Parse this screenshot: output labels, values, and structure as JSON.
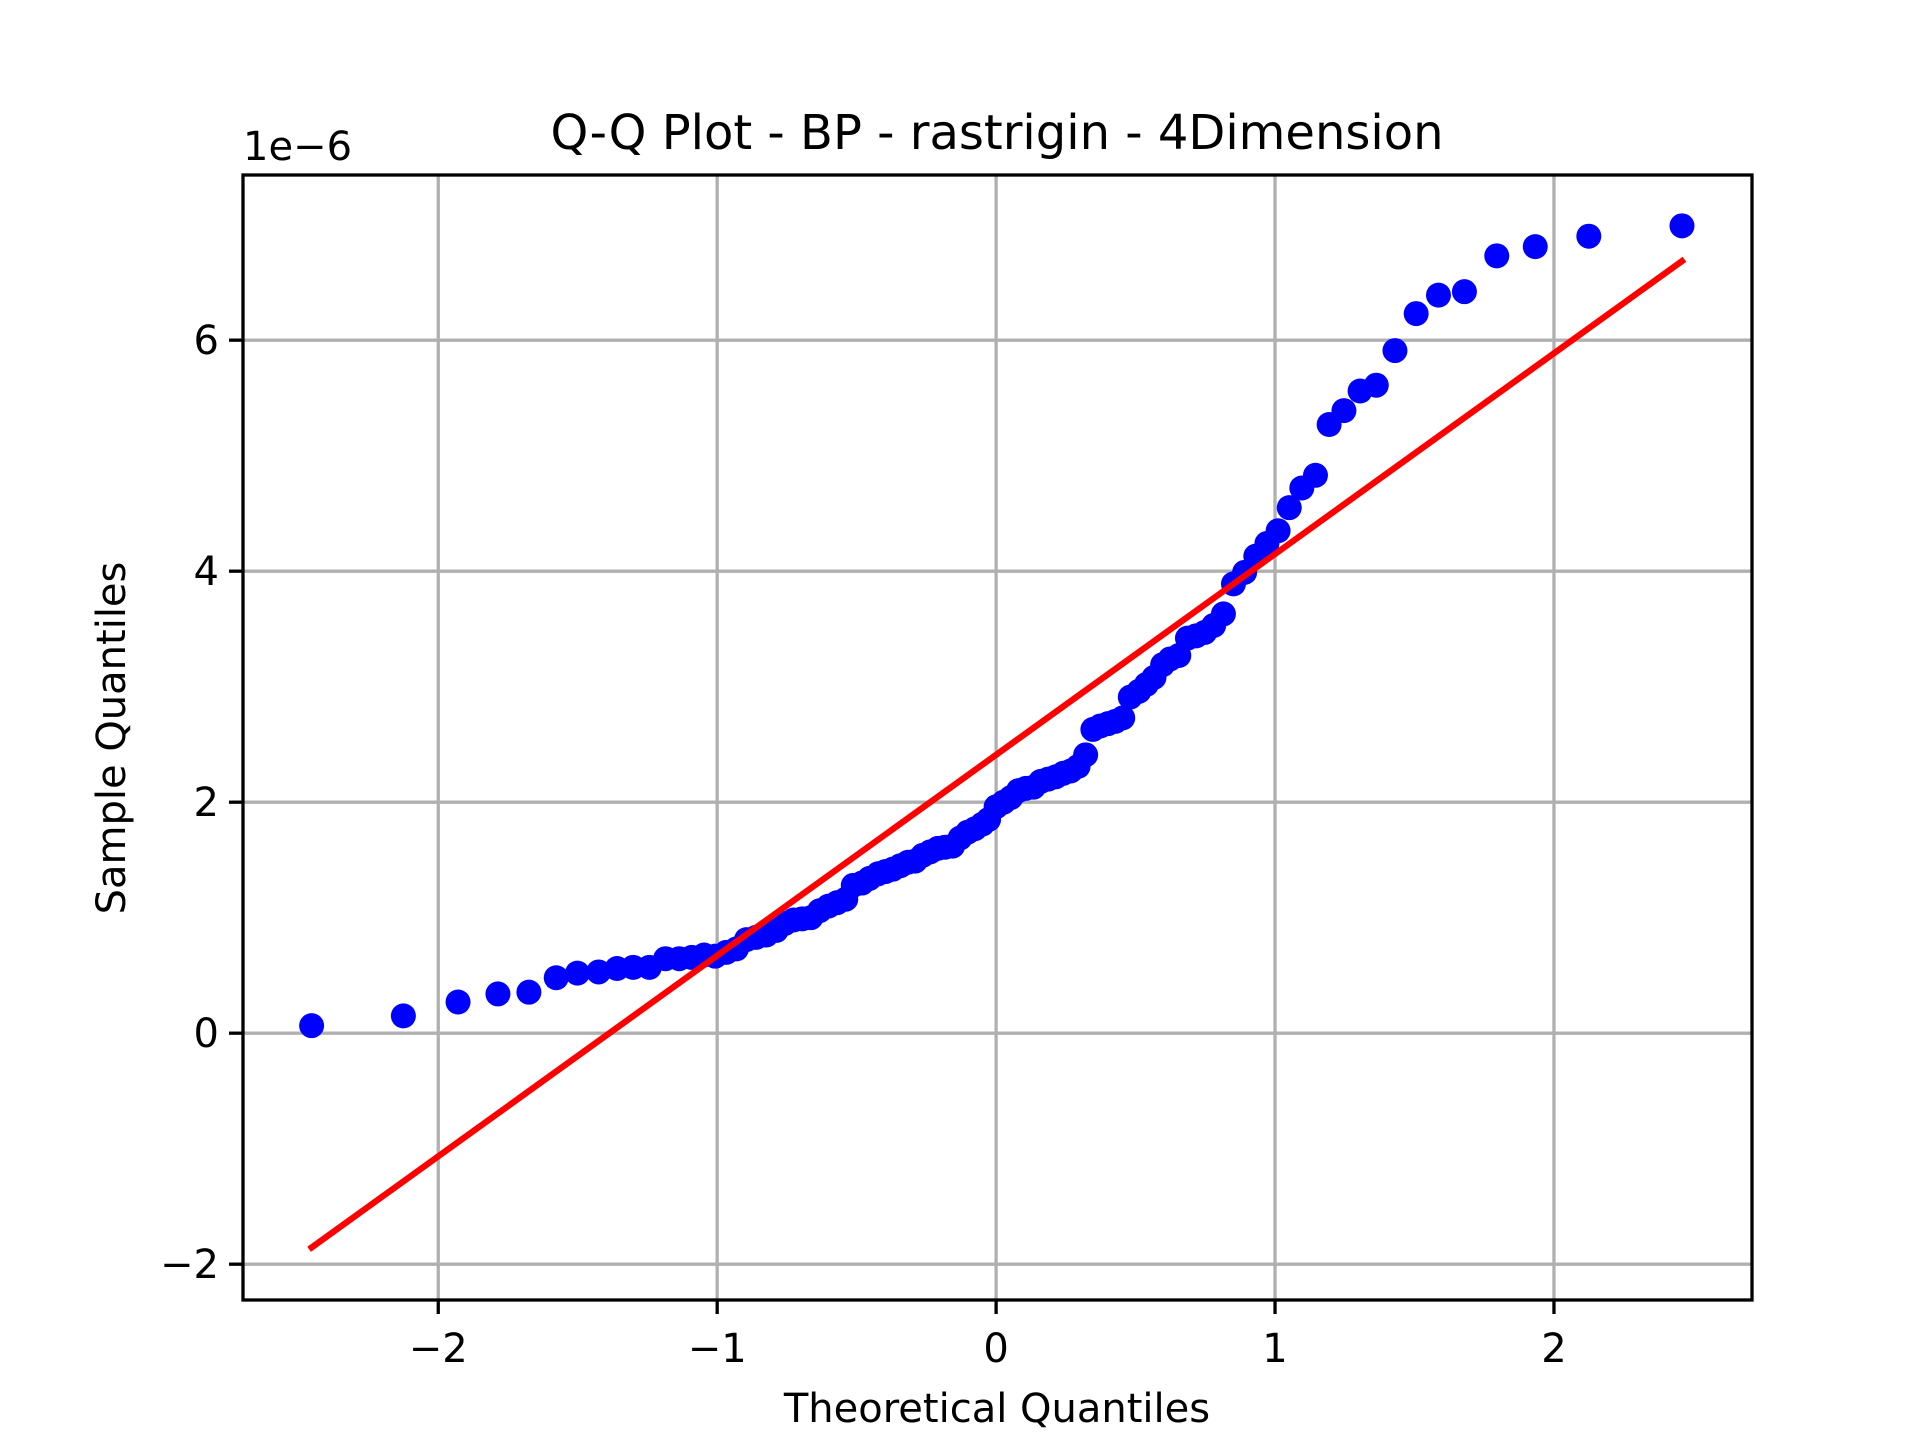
{
  "chart_data": {
    "type": "scatter",
    "title": "Q-Q Plot - BP - rastrigin - 4Dimension",
    "x_label": "Theoretical Quantiles",
    "y_label": "Sample Quantiles",
    "y_offset_label": "1e−6",
    "grid": true,
    "xlim": [
      -2.7,
      2.71
    ],
    "ylim": [
      -2.31,
      7.43
    ],
    "xticks": [
      {
        "value": -2,
        "label": "−2"
      },
      {
        "value": -1,
        "label": "−1"
      },
      0,
      1,
      2
    ],
    "yticks": [
      {
        "value": -2,
        "label": "−2"
      },
      0,
      2,
      4,
      6
    ],
    "series": [
      {
        "color": "#0000ff",
        "x": [
          -2.454,
          -2.125,
          -1.929,
          -1.786,
          -1.675,
          -1.577,
          -1.501,
          -1.425,
          -1.359,
          -1.301,
          -1.243,
          -1.185,
          -1.136,
          -1.091,
          -1.047,
          -1.007,
          -0.967,
          -0.931,
          -0.895,
          -0.86,
          -0.824,
          -0.788,
          -0.757,
          -0.726,
          -0.695,
          -0.664,
          -0.633,
          -0.601,
          -0.57,
          -0.539,
          -0.512,
          -0.481,
          -0.454,
          -0.423,
          -0.396,
          -0.37,
          -0.343,
          -0.316,
          -0.29,
          -0.263,
          -0.236,
          -0.209,
          -0.183,
          -0.156,
          -0.129,
          -0.102,
          -0.076,
          -0.049,
          -0.027,
          0,
          0.027,
          0.053,
          0.08,
          0.107,
          0.134,
          0.16,
          0.187,
          0.214,
          0.241,
          0.267,
          0.294,
          0.321,
          0.347,
          0.374,
          0.401,
          0.428,
          0.454,
          0.481,
          0.512,
          0.539,
          0.566,
          0.597,
          0.624,
          0.655,
          0.686,
          0.717,
          0.748,
          0.78,
          0.815,
          0.851,
          0.891,
          0.931,
          0.971,
          1.011,
          1.051,
          1.096,
          1.145,
          1.194,
          1.247,
          1.305,
          1.363,
          1.43,
          1.506,
          1.586,
          1.679,
          1.795,
          1.933,
          2.125,
          2.459
        ],
        "values": [
          0.065,
          0.15,
          0.27,
          0.34,
          0.355,
          0.48,
          0.52,
          0.53,
          0.56,
          0.57,
          0.57,
          0.645,
          0.645,
          0.656,
          0.677,
          0.667,
          0.7,
          0.73,
          0.81,
          0.83,
          0.85,
          0.89,
          0.95,
          0.98,
          0.99,
          1.0,
          1.06,
          1.1,
          1.13,
          1.16,
          1.28,
          1.3,
          1.34,
          1.38,
          1.4,
          1.42,
          1.45,
          1.48,
          1.49,
          1.54,
          1.57,
          1.6,
          1.61,
          1.62,
          1.69,
          1.74,
          1.77,
          1.81,
          1.85,
          1.96,
          2.0,
          2.04,
          2.1,
          2.12,
          2.13,
          2.18,
          2.2,
          2.22,
          2.25,
          2.27,
          2.31,
          2.41,
          2.63,
          2.66,
          2.68,
          2.7,
          2.73,
          2.91,
          2.96,
          3.02,
          3.08,
          3.19,
          3.24,
          3.27,
          3.42,
          3.44,
          3.47,
          3.53,
          3.63,
          3.89,
          3.99,
          4.13,
          4.24,
          4.35,
          4.55,
          4.72,
          4.83,
          5.27,
          5.39,
          5.56,
          5.61,
          5.91,
          6.23,
          6.39,
          6.42,
          6.73,
          6.81,
          6.9,
          6.99
        ]
      }
    ],
    "reference_line": {
      "color": "#ff0000",
      "x": [
        -2.463,
        2.468
      ],
      "values": [
        -1.871,
        6.7
      ]
    }
  }
}
